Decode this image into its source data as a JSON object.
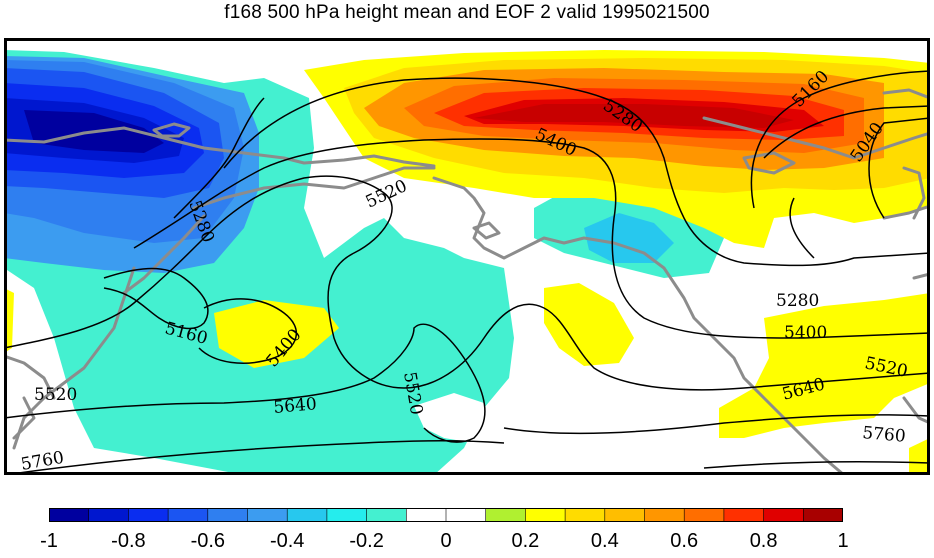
{
  "title": "f168 500 hPa height mean and EOF 2 valid 1995021500",
  "map": {
    "fill_field": "EOF 2",
    "contour_field": "500 hPa height mean",
    "contour_labels": [
      {
        "id": "c5280a",
        "text": "5280"
      },
      {
        "id": "c5400a",
        "text": "5400"
      },
      {
        "id": "c5160a",
        "text": "5160"
      },
      {
        "id": "c5040a",
        "text": "5040"
      },
      {
        "id": "c5520a",
        "text": "5520"
      },
      {
        "id": "c5280b",
        "text": "5280"
      },
      {
        "id": "c5160b",
        "text": "5160"
      },
      {
        "id": "c5400b",
        "text": "5400"
      },
      {
        "id": "c5520b",
        "text": "5520"
      },
      {
        "id": "c5640a",
        "text": "5640"
      },
      {
        "id": "c5520c",
        "text": "5520"
      },
      {
        "id": "c5760a",
        "text": "5760"
      },
      {
        "id": "c5280c",
        "text": "5280"
      },
      {
        "id": "c5400c",
        "text": "5400"
      },
      {
        "id": "c5520d",
        "text": "5520"
      },
      {
        "id": "c5640b",
        "text": "5640"
      },
      {
        "id": "c5760b",
        "text": "5760"
      }
    ],
    "colors": {
      "coastline": "#8c8c8c",
      "contour": "#000000"
    }
  },
  "colorbar": {
    "colors": [
      "#00009f",
      "#0017cf",
      "#0a2df0",
      "#1b55f2",
      "#2f7ff0",
      "#3c9cf0",
      "#27c8ee",
      "#25eded",
      "#44f0d0",
      "#ffffff",
      "#ffffff",
      "#b0f030",
      "#ffff00",
      "#ffdc00",
      "#ffbe00",
      "#ff9600",
      "#ff6e00",
      "#ff3000",
      "#e00000",
      "#a80000"
    ],
    "ticks": [
      "-1",
      "-0.8",
      "-0.6",
      "-0.4",
      "-0.2",
      "0",
      "0.2",
      "0.4",
      "0.6",
      "0.8",
      "1"
    ]
  }
}
